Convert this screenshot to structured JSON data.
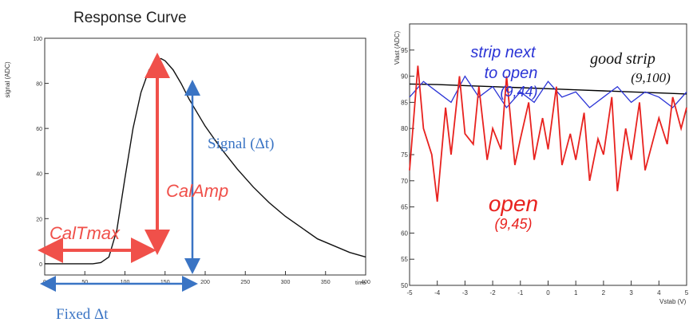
{
  "chart_data": [
    {
      "type": "line",
      "title": "Response Curve",
      "xlabel": "time",
      "ylabel": "signal (ADC)",
      "xlim": [
        0,
        400
      ],
      "ylim": [
        -5,
        100
      ],
      "xticks": [
        "0",
        "50",
        "100",
        "150",
        "200",
        "250",
        "300",
        "350",
        "400"
      ],
      "yticks": [
        "0",
        "20",
        "40",
        "60",
        "80",
        "100"
      ],
      "series": [
        {
          "x": [
            0,
            20,
            40,
            60,
            70,
            80,
            90,
            100,
            110,
            120,
            130,
            140,
            145,
            150,
            160,
            170,
            180,
            190,
            200,
            220,
            240,
            260,
            280,
            300,
            320,
            340,
            360,
            380,
            400
          ],
          "y": [
            0,
            0,
            0,
            0,
            0.5,
            3,
            15,
            38,
            60,
            76,
            86,
            90.5,
            91,
            90,
            86,
            80,
            73,
            67,
            61,
            51,
            42,
            34,
            27,
            21,
            16,
            11,
            8,
            5,
            3
          ]
        }
      ],
      "annotations": {
        "caltmax": "CalTmax",
        "calamp": "CalAmp",
        "signal_dt": "Signal (Δt)",
        "fixed_dt": "Fixed Δt"
      }
    },
    {
      "type": "line",
      "xlabel": "Vstab (V)",
      "ylabel": "Vlast (ADC)",
      "xlim": [
        -5,
        5
      ],
      "ylim": [
        50,
        100
      ],
      "xticks": [
        "-5",
        "-4",
        "-3",
        "-2",
        "-1",
        "0",
        "1",
        "2",
        "3",
        "4",
        "5"
      ],
      "yticks": [
        "50",
        "55",
        "60",
        "65",
        "70",
        "75",
        "80",
        "85",
        "90",
        "95"
      ],
      "series": [
        {
          "name": "good strip (9,100)",
          "color": "#000000",
          "x": [
            -5,
            -4,
            -3,
            -2,
            -1,
            0,
            1,
            2,
            3,
            4,
            5
          ],
          "y": [
            88.5,
            88.4,
            88.2,
            88.0,
            87.8,
            87.6,
            87.4,
            87.2,
            87.0,
            86.8,
            86.6
          ]
        },
        {
          "name": "strip next to open (9,44)",
          "color": "#2b34d6",
          "x": [
            -5,
            -4.5,
            -4,
            -3.5,
            -3,
            -2.5,
            -2,
            -1.5,
            -1,
            -0.5,
            0,
            0.5,
            1,
            1.5,
            2,
            2.5,
            3,
            3.5,
            4,
            4.5,
            5
          ],
          "y": [
            86,
            89,
            87,
            85,
            90,
            86,
            88,
            84,
            87,
            85,
            89,
            86,
            87,
            84,
            86,
            88,
            85,
            87,
            86,
            84,
            87
          ]
        },
        {
          "name": "open (9,45)",
          "color": "#e8221f",
          "x": [
            -5,
            -4.7,
            -4.5,
            -4.2,
            -4,
            -3.7,
            -3.5,
            -3.2,
            -3,
            -2.7,
            -2.5,
            -2.2,
            -2,
            -1.7,
            -1.5,
            -1.2,
            -1,
            -0.7,
            -0.5,
            -0.2,
            0,
            0.3,
            0.5,
            0.8,
            1,
            1.3,
            1.5,
            1.8,
            2,
            2.3,
            2.5,
            2.8,
            3,
            3.3,
            3.5,
            3.8,
            4,
            4.3,
            4.5,
            4.8,
            5
          ],
          "y": [
            72,
            92,
            80,
            75,
            66,
            84,
            75,
            90,
            79,
            77,
            88,
            74,
            80,
            76,
            90,
            73,
            78,
            85,
            74,
            82,
            76,
            88,
            73,
            79,
            74,
            83,
            70,
            78,
            75,
            86,
            68,
            80,
            74,
            85,
            72,
            78,
            82,
            77,
            86,
            80,
            84
          ]
        }
      ],
      "annotations": {
        "good_strip_label": "good strip",
        "good_strip_coords": "(9,100)",
        "next_label_1": "strip next",
        "next_label_2": "to open",
        "next_coords": "(9,44)",
        "open_label": "open",
        "open_coords": "(9,45)"
      }
    }
  ]
}
